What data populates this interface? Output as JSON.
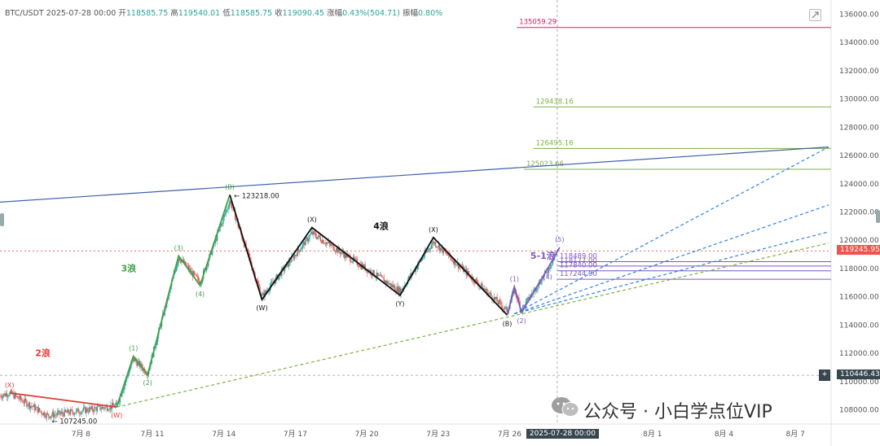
{
  "header": {
    "symbol": "BTC/USDT",
    "datetime": "2025-07-28 00:00",
    "open_label": "开",
    "open": "118585.75",
    "high_label": "高",
    "high": "119540.01",
    "low_label": "低",
    "low": "118585.75",
    "close_label": "收",
    "close": "119090.45",
    "change_label": "涨幅",
    "change": "0.43%(504.71)",
    "amplitude_label": "振幅",
    "amplitude": "0.80%"
  },
  "colors": {
    "up": "#26a69a",
    "down": "#ef5350",
    "wave_red": "#e53935",
    "wave_green": "#43a047",
    "wave_black": "#111111",
    "wave_purple": "#7e57c2",
    "trend_blue": "#3f5fae",
    "projection_blue": "#2f80ed",
    "level_magenta": "#d81b60",
    "level_green": "#7cb342",
    "level_purple": "#7e57c2",
    "price_tag": "#ef5350",
    "crosshair_tag": "#37474f"
  },
  "chart_data": {
    "type": "candlestick",
    "ylim": [
      107000,
      137000
    ],
    "y_ticks": [
      108000,
      110000,
      112000,
      114000,
      116000,
      118000,
      120000,
      122000,
      124000,
      126000,
      128000,
      130000,
      132000,
      134000,
      136000
    ],
    "y_tick_labels": [
      "108000.00",
      "110000.00",
      "112000.00",
      "114000.00",
      "116000.00",
      "118000.00",
      "120000.00",
      "122000.00",
      "124000.00",
      "126000.00",
      "128000.00",
      "130000.00",
      "132000.00",
      "134000.00",
      "136000.00"
    ],
    "x_ticks": [
      {
        "label": "7月 8",
        "day": 8
      },
      {
        "label": "7月 11",
        "day": 11
      },
      {
        "label": "7月 14",
        "day": 14
      },
      {
        "label": "7月 17",
        "day": 17
      },
      {
        "label": "7月 20",
        "day": 20
      },
      {
        "label": "7月 23",
        "day": 23
      },
      {
        "label": "7月 26",
        "day": 26
      },
      {
        "label": "8月 1",
        "day": 32
      },
      {
        "label": "8月 4",
        "day": 35
      },
      {
        "label": "8月 7",
        "day": 38
      }
    ],
    "x_range_days": [
      4.6,
      39.5
    ],
    "crosshair": {
      "day": 28,
      "price": 110446.43,
      "time_label": "2025-07-28 00:00",
      "price_label": "110446.43"
    },
    "last_price": {
      "value": 119245.95,
      "label": "119245.95"
    },
    "price_levels": [
      {
        "value": 135059.29,
        "label": "135059.29",
        "color": "#d81b60",
        "from_day": 26.3
      },
      {
        "value": 129438.16,
        "label": "129438.16",
        "color": "#7cb342",
        "from_day": 27.0
      },
      {
        "value": 126495.16,
        "label": "126495.16",
        "color": "#7cb342",
        "from_day": 27.0
      },
      {
        "value": 125023.66,
        "label": "125023.66",
        "color": "#7cb342",
        "from_day": 26.6
      },
      {
        "value": 118489.0,
        "label": "118489.00",
        "color": "#7e57c2",
        "from_day": 28.0
      },
      {
        "value": 118177.0,
        "label": "118177.00",
        "color": "#7e57c2",
        "from_day": 28.0
      },
      {
        "value": 117840.0,
        "label": "117840.00",
        "color": "#7e57c2",
        "from_day": 28.0
      },
      {
        "value": 117244.0,
        "label": "117244.00",
        "color": "#7e57c2",
        "from_day": 28.0
      }
    ],
    "price_annotations": [
      {
        "label": "123218.00",
        "day": 14.25,
        "price": 123218
      },
      {
        "label": "107245.00",
        "day": 6.6,
        "price": 107245
      }
    ],
    "wave_titles": [
      {
        "label": "2浪",
        "day": 6.4,
        "price": 111800,
        "color": "#e53935"
      },
      {
        "label": "3浪",
        "day": 10.0,
        "price": 117800,
        "color": "#43a047"
      },
      {
        "label": "4浪",
        "day": 20.6,
        "price": 120800,
        "color": "#111111"
      },
      {
        "label": "5-1浪",
        "day": 27.4,
        "price": 118700,
        "color": "#7e57c2"
      }
    ],
    "waves": [
      {
        "name": "wave-2",
        "color": "#e53935",
        "points": [
          [
            5.0,
            109200
          ],
          [
            9.5,
            108200
          ]
        ],
        "labels": [
          {
            "text": "(X)",
            "idx": 0,
            "pos": "above"
          },
          {
            "text": "(W)",
            "idx": 1,
            "pos": "below"
          }
        ]
      },
      {
        "name": "wave-3",
        "color": "#43a047",
        "points": [
          [
            9.5,
            108200
          ],
          [
            10.2,
            111800
          ],
          [
            10.8,
            110500
          ],
          [
            12.1,
            118900
          ],
          [
            13.0,
            116800
          ],
          [
            14.25,
            123218
          ],
          [
            14.25,
            123218
          ]
        ],
        "labels": [
          {
            "text": "(1)",
            "idx": 1,
            "pos": "above"
          },
          {
            "text": "(2)",
            "idx": 2,
            "pos": "below"
          },
          {
            "text": "(3)",
            "idx": 3,
            "pos": "above"
          },
          {
            "text": "(4)",
            "idx": 4,
            "pos": "below"
          },
          {
            "text": "(B)",
            "idx": 5,
            "pos": "above"
          }
        ]
      },
      {
        "name": "wave-4",
        "color": "#111111",
        "points": [
          [
            14.25,
            123218
          ],
          [
            15.6,
            115800
          ],
          [
            17.7,
            120900
          ],
          [
            21.4,
            116100
          ],
          [
            22.8,
            120200
          ],
          [
            25.9,
            114700
          ]
        ],
        "labels": [
          {
            "text": "(W)",
            "idx": 1,
            "pos": "below"
          },
          {
            "text": "(X)",
            "idx": 2,
            "pos": "above"
          },
          {
            "text": "(Y)",
            "idx": 3,
            "pos": "below"
          },
          {
            "text": "(X)",
            "idx": 4,
            "pos": "above"
          },
          {
            "text": "(B)",
            "idx": 5,
            "pos": "below"
          }
        ]
      },
      {
        "name": "wave-5-1",
        "color": "#7e57c2",
        "points": [
          [
            25.9,
            114700
          ],
          [
            26.2,
            116700
          ],
          [
            26.5,
            114900
          ],
          [
            27.6,
            118000
          ],
          [
            28.1,
            119500
          ]
        ],
        "labels": [
          {
            "text": "(1)",
            "idx": 1,
            "pos": "above"
          },
          {
            "text": "(2)",
            "idx": 2,
            "pos": "below"
          },
          {
            "text": "(4)",
            "idx": 3,
            "pos": "below"
          },
          {
            "text": "(5)",
            "idx": 4,
            "pos": "above"
          }
        ]
      }
    ],
    "trendlines": [
      {
        "name": "upper-trendline",
        "color": "#3f5fae",
        "dash": false,
        "from": [
          4.6,
          122700
        ],
        "to": [
          39.4,
          126600
        ]
      },
      {
        "name": "lower-trendline",
        "color": "#7cb342",
        "dash": true,
        "from": [
          9.5,
          108200
        ],
        "to": [
          39.4,
          119800
        ]
      },
      {
        "name": "projection-1",
        "color": "#2f80ed",
        "dash": true,
        "from": [
          26.2,
          114800
        ],
        "to": [
          39.4,
          126600
        ]
      },
      {
        "name": "projection-2",
        "color": "#2f80ed",
        "dash": true,
        "from": [
          26.2,
          114800
        ],
        "to": [
          39.4,
          122500
        ]
      },
      {
        "name": "projection-3",
        "color": "#2f80ed",
        "dash": true,
        "from": [
          26.2,
          114800
        ],
        "to": [
          39.4,
          120600
        ]
      }
    ]
  },
  "watermark": {
    "text": "公众号 · 小白学点位VIP"
  },
  "right_axis_icon": "plus-icon",
  "toolbar_icon": "collapse-icon"
}
